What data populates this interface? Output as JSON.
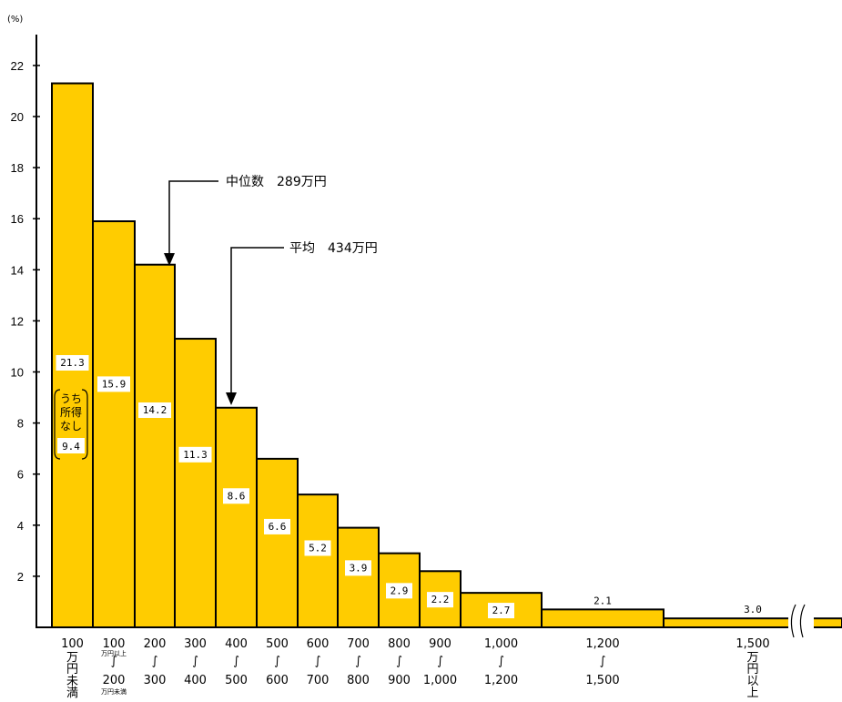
{
  "chart_data": {
    "type": "bar",
    "y_unit": "(%)",
    "ylim": [
      0,
      23
    ],
    "y_ticks": [
      2,
      4,
      6,
      8,
      10,
      12,
      14,
      16,
      18,
      20,
      22
    ],
    "grid": false,
    "bars": [
      {
        "value": 21.3,
        "label": "21.3",
        "x_label": {
          "top": "100",
          "lines": [
            "万",
            "円",
            "未",
            "満"
          ]
        }
      },
      {
        "value": 15.9,
        "label": "15.9",
        "x_label": {
          "top": "100",
          "small_top": "万円以上",
          "tilde": "∫",
          "bottom": "200",
          "small_bottom": "万円未満"
        }
      },
      {
        "value": 14.2,
        "label": "14.2",
        "x_label": {
          "top": "200",
          "tilde": "∫",
          "bottom": "300"
        }
      },
      {
        "value": 11.3,
        "label": "11.3",
        "x_label": {
          "top": "300",
          "tilde": "∫",
          "bottom": "400"
        }
      },
      {
        "value": 8.6,
        "label": "8.6",
        "x_label": {
          "top": "400",
          "tilde": "∫",
          "bottom": "500"
        }
      },
      {
        "value": 6.6,
        "label": "6.6",
        "x_label": {
          "top": "500",
          "tilde": "∫",
          "bottom": "600"
        }
      },
      {
        "value": 5.2,
        "label": "5.2",
        "x_label": {
          "top": "600",
          "tilde": "∫",
          "bottom": "700"
        }
      },
      {
        "value": 3.9,
        "label": "3.9",
        "x_label": {
          "top": "700",
          "tilde": "∫",
          "bottom": "800"
        }
      },
      {
        "value": 2.9,
        "label": "2.9",
        "x_label": {
          "top": "800",
          "tilde": "∫",
          "bottom": "900"
        }
      },
      {
        "value": 2.2,
        "label": "2.2",
        "x_label": {
          "top": "900",
          "tilde": "∫",
          "bottom": "1,000"
        }
      },
      {
        "value": 1.35,
        "label": "2.7",
        "x_label": {
          "top": "1,000",
          "tilde": "∫",
          "bottom": "1,200"
        }
      },
      {
        "value": 0.7,
        "label": "2.1",
        "x_label": {
          "top": "1,200",
          "tilde": "∫",
          "bottom": "1,500"
        }
      },
      {
        "value": 0.35,
        "label": "3.0",
        "x_label": {
          "top": "1,500",
          "lines": [
            "万",
            "円",
            "以",
            "上"
          ]
        }
      }
    ],
    "annotations": {
      "median": {
        "label": "中位数　289万円"
      },
      "mean": {
        "label": "平均　434万円"
      }
    },
    "note": {
      "lines": [
        "うち",
        "所得",
        "なし"
      ],
      "value": "9.4"
    }
  },
  "colors": {
    "bar_fill": "#FFCC00",
    "stroke": "#000000",
    "label_bg": "#ffffff"
  }
}
